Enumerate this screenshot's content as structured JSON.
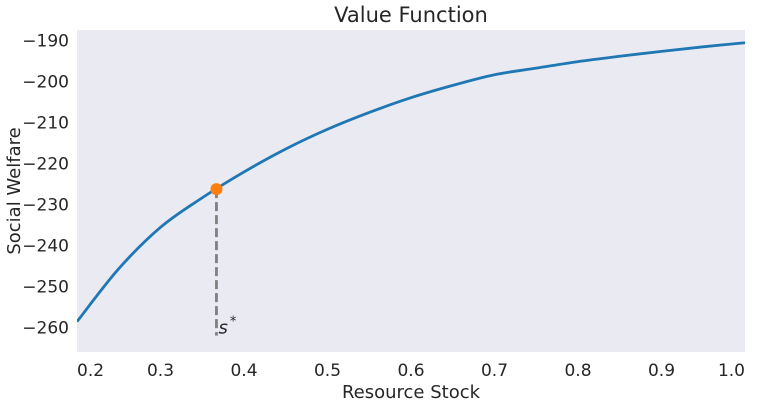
{
  "chart_data": {
    "type": "line",
    "title": "Value Function",
    "xlabel": "Resource Stock",
    "ylabel": "Social Welfare",
    "xlim": [
      0.2,
      1.0
    ],
    "ylim": [
      -266,
      -187.5
    ],
    "grid": false,
    "x_ticks": [
      0.2,
      0.3,
      0.4,
      0.5,
      0.6,
      0.7,
      0.8,
      0.9,
      1.0
    ],
    "x_tick_labels": [
      "0.2",
      "0.3",
      "0.4",
      "0.5",
      "0.6",
      "0.7",
      "0.8",
      "0.9",
      "1.0"
    ],
    "y_ticks": [
      -190,
      -200,
      -210,
      -220,
      -230,
      -240,
      -250,
      -260
    ],
    "y_tick_labels": [
      "−190",
      "−200",
      "−210",
      "−220",
      "−230",
      "−240",
      "−250",
      "−260"
    ],
    "series": [
      {
        "color": "#1f77b4",
        "x": [
          0.2,
          0.25,
          0.3,
          0.35,
          0.4,
          0.45,
          0.5,
          0.55,
          0.6,
          0.65,
          0.7,
          0.75,
          0.8,
          0.85,
          0.9,
          0.95,
          1.0
        ],
        "y": [
          -258.6,
          -245.7,
          -235.6,
          -228.4,
          -222.1,
          -216.5,
          -211.7,
          -207.6,
          -204.0,
          -201.0,
          -198.4,
          -196.8,
          -195.2,
          -193.9,
          -192.7,
          -191.6,
          -190.6
        ]
      }
    ],
    "optimal_point": {
      "x": 0.367,
      "y": -226.3,
      "color": "#ff7f0e",
      "label_base": "s",
      "label_sup": "*"
    },
    "drop_line": {
      "x": 0.367,
      "y_from": -226.3,
      "y_to": -262,
      "color": "#808080"
    },
    "colors": {
      "background": "#eaeaf2",
      "text": "#262626"
    }
  }
}
